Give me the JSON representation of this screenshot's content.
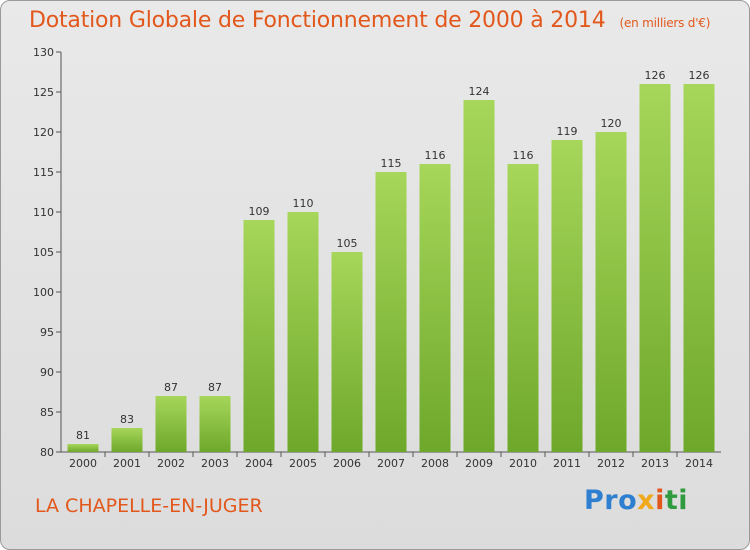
{
  "header": {
    "title": "Dotation Globale de Fonctionnement de 2000 à 2014",
    "subtitle": "(en milliers d'€)"
  },
  "footer": {
    "commune": "LA CHAPELLE-EN-JUGER",
    "logo_parts": [
      "Pro",
      "x",
      "i",
      "ti"
    ]
  },
  "colors": {
    "title": "#e2581c",
    "bar_light": "#a6d65a",
    "bar_dark": "#6ea82a",
    "background": "#e3e3e3"
  },
  "chart_data": {
    "type": "bar",
    "title": "Dotation Globale de Fonctionnement de 2000 à 2014",
    "subtitle": "(en milliers d'€)",
    "categories": [
      "2000",
      "2001",
      "2002",
      "2003",
      "2004",
      "2005",
      "2006",
      "2007",
      "2008",
      "2009",
      "2010",
      "2011",
      "2012",
      "2013",
      "2014"
    ],
    "values": [
      81,
      83,
      87,
      87,
      109,
      110,
      105,
      115,
      116,
      124,
      116,
      119,
      120,
      126,
      126
    ],
    "ylim": [
      80,
      130
    ],
    "yticks": [
      80,
      85,
      90,
      95,
      100,
      105,
      110,
      115,
      120,
      125,
      130
    ],
    "grid": false,
    "data_labels": true
  }
}
